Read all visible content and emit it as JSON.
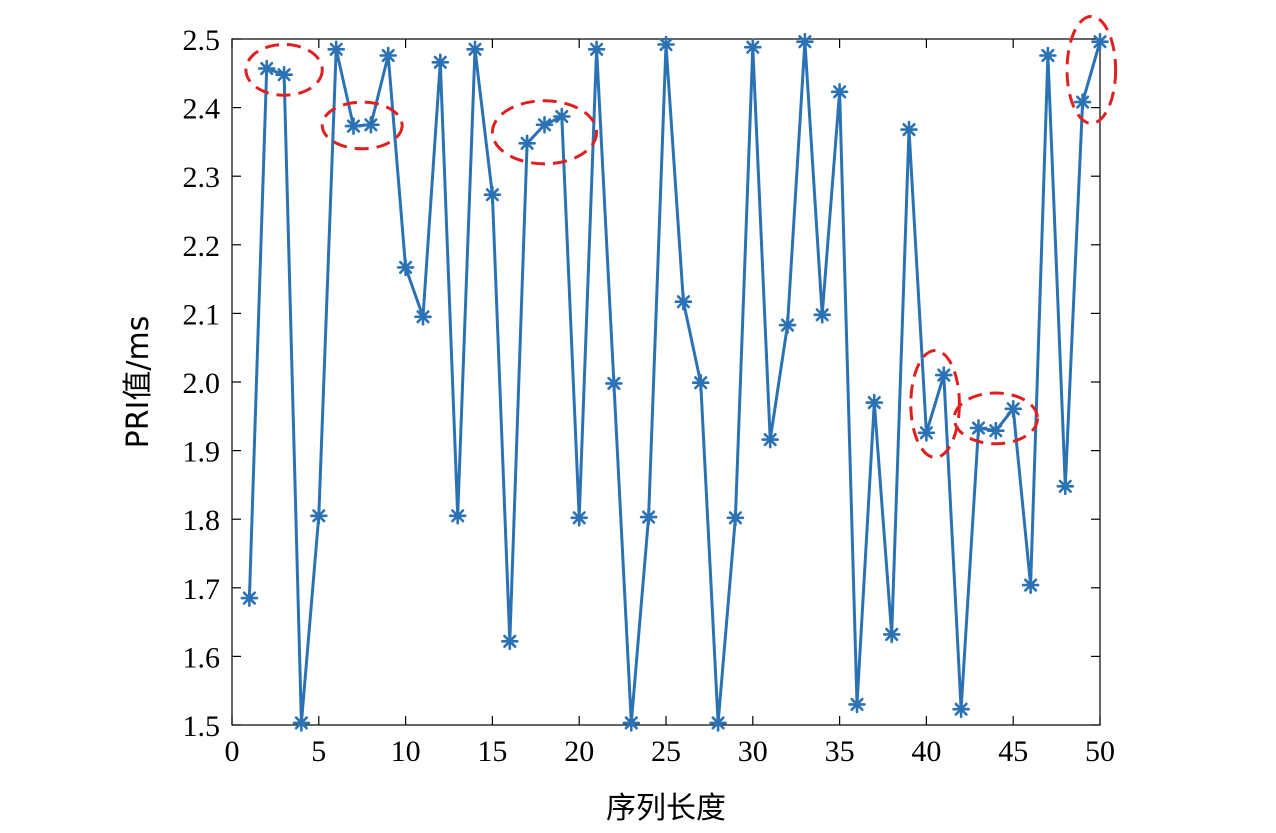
{
  "chart_data": {
    "type": "line",
    "xlabel": "序列长度",
    "ylabel": "PRI值/ms",
    "xlim": [
      0,
      50
    ],
    "ylim": [
      1.5,
      2.5
    ],
    "xticks": [
      "0",
      "5",
      "10",
      "15",
      "20",
      "25",
      "30",
      "35",
      "40",
      "45",
      "50"
    ],
    "yticks": [
      "1.5",
      "1.6",
      "1.7",
      "1.8",
      "1.9",
      "2.0",
      "2.1",
      "2.2",
      "2.3",
      "2.4",
      "2.5"
    ],
    "grid": false,
    "marker": "asterisk",
    "series": [
      {
        "color": "#2b72b5",
        "x": [
          1,
          2,
          3,
          4,
          5,
          6,
          7,
          8,
          9,
          10,
          11,
          12,
          13,
          14,
          15,
          16,
          17,
          18,
          19,
          20,
          21,
          22,
          23,
          24,
          25,
          26,
          27,
          28,
          29,
          30,
          31,
          32,
          33,
          34,
          35,
          36,
          37,
          38,
          39,
          40,
          41,
          42,
          43,
          44,
          45,
          46,
          47,
          48,
          49,
          50
        ],
        "y": [
          1.685,
          2.457,
          2.448,
          1.503,
          1.805,
          2.485,
          2.373,
          2.375,
          2.476,
          2.167,
          2.095,
          2.466,
          1.805,
          2.485,
          2.273,
          1.622,
          2.348,
          2.375,
          2.387,
          1.802,
          2.485,
          1.998,
          1.503,
          1.803,
          2.492,
          2.117,
          1.999,
          1.503,
          1.802,
          2.488,
          1.916,
          2.083,
          2.496,
          2.098,
          2.423,
          1.53,
          1.97,
          1.632,
          2.368,
          1.926,
          2.01,
          1.523,
          1.933,
          1.929,
          1.961,
          1.704,
          2.476,
          1.848,
          2.408,
          2.496
        ]
      }
    ],
    "annotations": [
      {
        "type": "ellipse",
        "color": "#e02020",
        "center": [
          3.0,
          2.455
        ],
        "rx": 2.2,
        "ry": 0.037
      },
      {
        "type": "ellipse",
        "color": "#e02020",
        "center": [
          7.5,
          2.374
        ],
        "rx": 2.3,
        "ry": 0.034
      },
      {
        "type": "ellipse",
        "color": "#e02020",
        "center": [
          18.0,
          2.364
        ],
        "rx": 3.0,
        "ry": 0.046
      },
      {
        "type": "ellipse",
        "color": "#e02020",
        "center": [
          40.5,
          1.968
        ],
        "rx": 1.4,
        "ry": 0.078
      },
      {
        "type": "ellipse",
        "color": "#e02020",
        "center": [
          44.0,
          1.947
        ],
        "rx": 2.4,
        "ry": 0.037
      },
      {
        "type": "ellipse",
        "color": "#e02020",
        "center": [
          49.5,
          2.455
        ],
        "rx": 1.4,
        "ry": 0.078
      }
    ]
  }
}
